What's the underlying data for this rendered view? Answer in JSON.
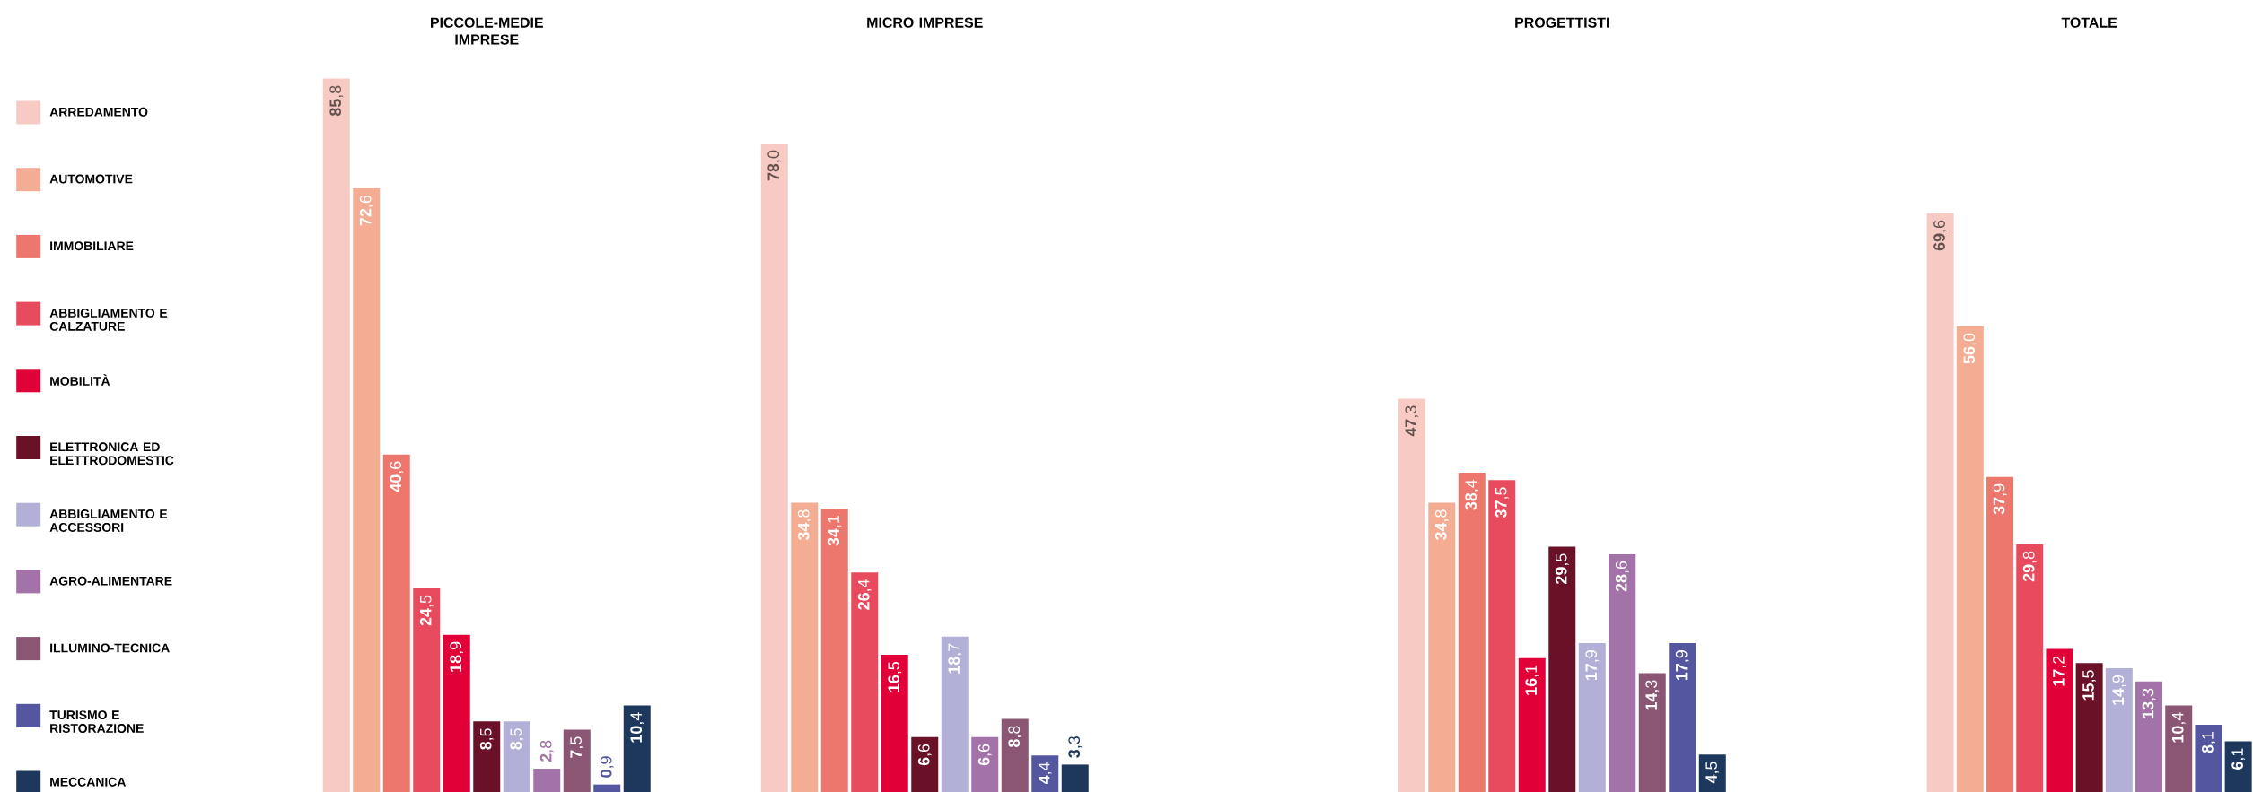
{
  "chart_data": [
    {
      "type": "bar",
      "title": "PICCOLE-MEDIE IMPRESE",
      "categories": [
        null
      ],
      "legend": "left",
      "series": [
        {
          "name": "ARREDAMENTO",
          "color": "#f7cbc4",
          "values": [
            85.8
          ],
          "value_labels": [
            "**85**,8"
          ]
        },
        {
          "name": "AUTOMOTIVE",
          "color": "#f4ad93",
          "values": [
            72.6
          ],
          "value_labels": [
            "**72**,6"
          ]
        },
        {
          "name": "IMMOBILIARE",
          "color": "#ed776c",
          "values": [
            40.6
          ],
          "value_labels": [
            "**40**,6"
          ]
        },
        {
          "name": "ABBIGLIAMENTO E CALZATURE",
          "color": "#e84b5e",
          "values": [
            24.5
          ],
          "value_labels": [
            "**24**,5"
          ]
        },
        {
          "name": "MOBILITÀ",
          "color": "#e20038",
          "values": [
            18.9
          ],
          "value_labels": [
            "**18**,9"
          ]
        },
        {
          "name": "ELETTRONICA ED ELETTRODOMESTIC",
          "color": "#6a1027",
          "values": [
            8.5
          ],
          "value_labels": [
            "**8**,5"
          ]
        },
        {
          "name": "ABBIGLIAMENTO E ACCESSORI",
          "color": "#b2b0d7",
          "values": [
            8.5
          ],
          "value_labels": [
            "**8**,5"
          ]
        },
        {
          "name": "AGRO-ALIMENTARE",
          "color": "#a272a8",
          "values": [
            2.8
          ],
          "value_labels": [
            "**2**,8"
          ]
        },
        {
          "name": "ILLUMINO-TECNICA",
          "color": "#8a5674",
          "values": [
            7.5
          ],
          "value_labels": [
            "**7**,5"
          ]
        },
        {
          "name": "TURISMO E RISTORAZIONE",
          "color": "#5457a0",
          "values": [
            0.9
          ],
          "value_labels": [
            "**0**,9"
          ]
        },
        {
          "name": "MECCANICA",
          "color": "#1e375c",
          "values": [
            10.4
          ],
          "value_labels": [
            "**10**,4"
          ]
        }
      ]
    },
    {
      "type": "bar",
      "title": "MICRO IMPRESE",
      "categories": [
        null
      ],
      "series": [
        {
          "color": "#f7cbc4",
          "values": [
            78.0
          ],
          "value_labels": [
            "**78**,0"
          ]
        },
        {
          "color": "#f4ad93",
          "values": [
            34.8
          ],
          "value_labels": [
            "**34**,8"
          ]
        },
        {
          "color": "#ed776c",
          "values": [
            34.1
          ],
          "value_labels": [
            "**34**,1"
          ]
        },
        {
          "color": "#e84b5e",
          "values": [
            26.4
          ],
          "value_labels": [
            "**26**,4"
          ]
        },
        {
          "color": "#e20038",
          "values": [
            16.5
          ],
          "value_labels": [
            "**16**,5"
          ]
        },
        {
          "color": "#6a1027",
          "values": [
            6.6
          ],
          "value_labels": [
            "**6**,6"
          ]
        },
        {
          "color": "#b2b0d7",
          "values": [
            18.7
          ],
          "value_labels": [
            "**18**,7"
          ]
        },
        {
          "color": "#a272a8",
          "values": [
            6.6
          ],
          "value_labels": [
            "**6**,6"
          ]
        },
        {
          "color": "#8a5674",
          "values": [
            8.8
          ],
          "value_labels": [
            "**8**,8"
          ]
        },
        {
          "color": "#5457a0",
          "values": [
            4.4
          ],
          "value_labels": [
            "**4**,4"
          ]
        },
        {
          "color": "#1e375c",
          "values": [
            3.3
          ],
          "value_labels": [
            "**3**,3"
          ]
        }
      ]
    },
    {
      "type": "bar",
      "title": "PROGETTISTI",
      "categories": [
        null
      ],
      "series": [
        {
          "color": "#f7cbc4",
          "values": [
            47.3
          ],
          "value_labels": [
            "**47**,3"
          ]
        },
        {
          "color": "#f4ad93",
          "values": [
            34.8
          ],
          "value_labels": [
            "**34**,8"
          ]
        },
        {
          "color": "#ed776c",
          "values": [
            38.4
          ],
          "value_labels": [
            "**38**,4"
          ]
        },
        {
          "color": "#e84b5e",
          "values": [
            37.5
          ],
          "value_labels": [
            "**37**,5"
          ]
        },
        {
          "color": "#e20038",
          "values": [
            16.1
          ],
          "value_labels": [
            "**16**,1"
          ]
        },
        {
          "color": "#6a1027",
          "values": [
            29.5
          ],
          "value_labels": [
            "**29**,5"
          ]
        },
        {
          "color": "#b2b0d7",
          "values": [
            17.9
          ],
          "value_labels": [
            "**17**,9"
          ]
        },
        {
          "color": "#a272a8",
          "values": [
            28.6
          ],
          "value_labels": [
            "**28**,6"
          ]
        },
        {
          "color": "#8a5674",
          "values": [
            14.3
          ],
          "value_labels": [
            "**14**,3"
          ]
        },
        {
          "color": "#5457a0",
          "values": [
            17.9
          ],
          "value_labels": [
            "**17**,9"
          ]
        },
        {
          "color": "#1e375c",
          "values": [
            4.5
          ],
          "value_labels": [
            "**4**,5"
          ]
        }
      ]
    },
    {
      "type": "bar",
      "title": "TOTALE",
      "categories": [
        null
      ],
      "series": [
        {
          "color": "#f7cbc4",
          "values": [
            69.6
          ],
          "value_labels": [
            "**69**,6"
          ]
        },
        {
          "color": "#f4ad93",
          "values": [
            56.0
          ],
          "value_labels": [
            "**56**,0"
          ]
        },
        {
          "color": "#ed776c",
          "values": [
            37.9
          ],
          "value_labels": [
            "**37**,9"
          ]
        },
        {
          "color": "#e84b5e",
          "values": [
            29.8
          ],
          "value_labels": [
            "**29**,8"
          ]
        },
        {
          "color": "#e20038",
          "values": [
            17.2
          ],
          "value_labels": [
            "**17**,2"
          ]
        },
        {
          "color": "#6a1027",
          "values": [
            15.5
          ],
          "value_labels": [
            "**15**,5"
          ]
        },
        {
          "color": "#b2b0d7",
          "values": [
            14.9
          ],
          "value_labels": [
            "**14**,9"
          ]
        },
        {
          "color": "#a272a8",
          "values": [
            13.3
          ],
          "value_labels": [
            "**13**,3"
          ]
        },
        {
          "color": "#8a5674",
          "values": [
            10.4
          ],
          "value_labels": [
            "**10**,4"
          ]
        },
        {
          "color": "#5457a0",
          "values": [
            8.1
          ],
          "value_labels": [
            "**8**,1"
          ]
        },
        {
          "color": "#1e375c",
          "values": [
            6.1
          ],
          "value_labels": [
            "**6**,1"
          ]
        }
      ]
    }
  ]
}
